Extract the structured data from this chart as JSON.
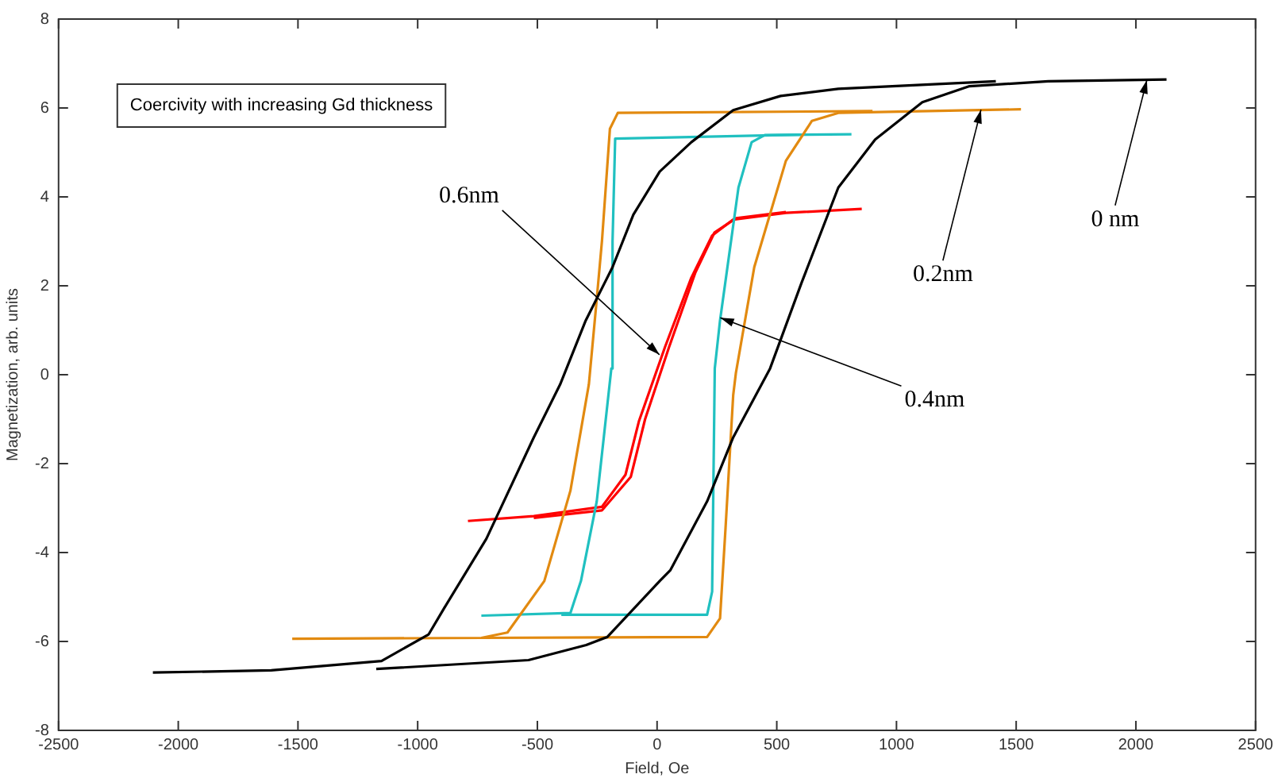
{
  "chart_data": {
    "type": "line",
    "xlabel": "Field, Oe",
    "ylabel": "Magnetization, arb. units",
    "xlim": [
      -2500,
      2500
    ],
    "xticks": [
      -2500,
      -2000,
      -1500,
      -1000,
      -500,
      0,
      500,
      1000,
      1500,
      2000,
      2500
    ],
    "ylim": [
      -8,
      8
    ],
    "yticks": [
      -8,
      -6,
      -4,
      -2,
      0,
      2,
      4,
      6,
      8
    ],
    "series": [
      {
        "color": "#000000",
        "x": [
          -2106,
          -1612,
          -1151,
          -954,
          -888,
          -713,
          -515,
          -405,
          -298,
          -186,
          -99,
          11,
          143,
          318,
          516,
          757,
          1415
        ],
        "values": [
          -6.7,
          -6.65,
          -6.44,
          -5.84,
          -5.24,
          -3.69,
          -1.41,
          -0.22,
          1.22,
          2.42,
          3.6,
          4.57,
          5.23,
          5.95,
          6.27,
          6.43,
          6.6
        ]
      },
      {
        "color": "#000000",
        "x": [
          -1173,
          -537,
          -296,
          -208,
          11,
          55,
          209,
          318,
          472,
          603,
          757,
          911,
          1108,
          1305,
          1634,
          2128
        ],
        "values": [
          -6.62,
          -6.42,
          -6.08,
          -5.9,
          -4.64,
          -4.4,
          -2.85,
          -1.41,
          0.14,
          2.06,
          4.21,
          5.29,
          6.13,
          6.49,
          6.6,
          6.64
        ]
      },
      {
        "color": "#e28a10",
        "x": [
          -1524,
          -734,
          -625,
          -471,
          -362,
          -285,
          -252,
          -230,
          -197,
          -164,
          900
        ],
        "values": [
          -5.94,
          -5.92,
          -5.8,
          -4.64,
          -2.61,
          -0.22,
          1.7,
          3.02,
          5.53,
          5.89,
          5.93
        ]
      },
      {
        "color": "#e28a10",
        "x": [
          -734,
          209,
          263,
          286,
          318,
          329,
          406,
          538,
          647,
          757,
          1520
        ],
        "values": [
          -5.92,
          -5.9,
          -5.48,
          -3.45,
          -0.46,
          0.03,
          2.42,
          4.81,
          5.71,
          5.89,
          5.97
        ]
      },
      {
        "color": "#20c0c0",
        "x": [
          -734,
          -362,
          -318,
          -252,
          -191,
          -186,
          -175,
          600
        ],
        "values": [
          -5.42,
          -5.36,
          -4.64,
          -2.85,
          0.14,
          3.0,
          5.31,
          5.4
        ]
      },
      {
        "color": "#20c0c0",
        "x": [
          -400,
          209,
          230,
          241,
          263,
          340,
          395,
          450,
          812
        ],
        "values": [
          -5.4,
          -5.4,
          -4.88,
          0.14,
          1.22,
          4.21,
          5.23,
          5.39,
          5.41
        ]
      },
      {
        "color": "#ff0000",
        "x": [
          -790,
          -515,
          -230,
          -132,
          -76,
          33,
          143,
          230,
          318,
          538,
          855
        ],
        "values": [
          -3.29,
          -3.18,
          -2.97,
          -2.25,
          -1.05,
          0.62,
          2.18,
          3.13,
          3.49,
          3.64,
          3.73
        ]
      },
      {
        "color": "#ff0000",
        "x": [
          -515,
          -230,
          -110,
          -50,
          50,
          160,
          240,
          330,
          538
        ],
        "values": [
          -3.22,
          -3.05,
          -2.3,
          -1.0,
          0.62,
          2.3,
          3.2,
          3.52,
          3.66
        ]
      }
    ],
    "annotations": [
      "Coercivity with increasing Gd thickness",
      {
        "text": "0.6nm",
        "x": 10,
        "y": 0.45
      },
      {
        "text": "0.4nm",
        "x": 264,
        "y": 1.28
      },
      {
        "text": "0.2nm",
        "x": 1353,
        "y": 5.96
      },
      {
        "text": "0 nm",
        "x": 2046,
        "y": 6.63
      }
    ]
  }
}
